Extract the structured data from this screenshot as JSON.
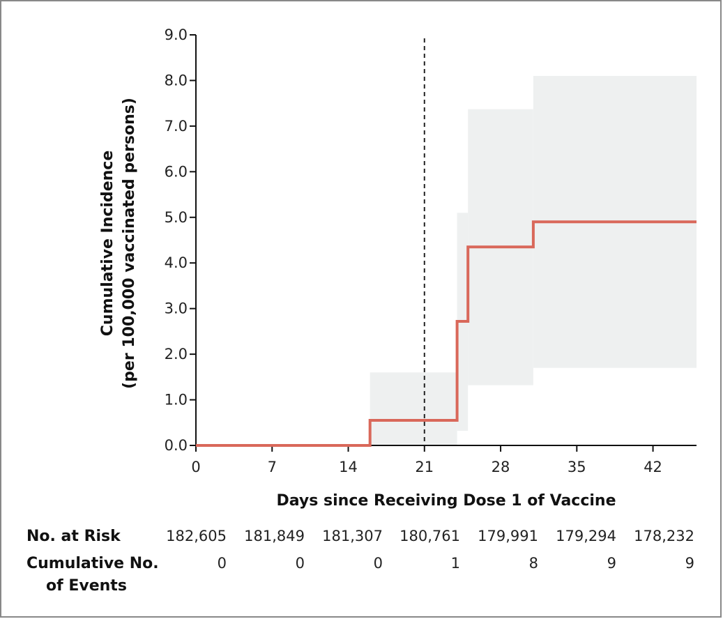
{
  "chart_data": {
    "type": "line",
    "step": true,
    "xlabel": "Days since Receiving Dose 1 of Vaccine",
    "ylabel": [
      "Cumulative Incidence",
      "(per 100,000 vaccinated persons)"
    ],
    "xlim": [
      0,
      46
    ],
    "ylim": [
      0,
      9
    ],
    "xticks": [
      0,
      7,
      14,
      21,
      28,
      35,
      42
    ],
    "yticks": [
      "0.0",
      "1.0",
      "2.0",
      "3.0",
      "4.0",
      "5.0",
      "6.0",
      "7.0",
      "8.0",
      "9.0"
    ],
    "reference_line_x": 21,
    "series": [
      {
        "color": "#d9685a",
        "points": [
          [
            0,
            0
          ],
          [
            16,
            0
          ],
          [
            16,
            0.55
          ],
          [
            24,
            0.55
          ],
          [
            24,
            2.72
          ],
          [
            25,
            2.72
          ],
          [
            25,
            4.35
          ],
          [
            31,
            4.35
          ],
          [
            31,
            4.9
          ],
          [
            46,
            4.9
          ]
        ]
      }
    ],
    "confidence_band": {
      "color": "#eef0f0",
      "segments": [
        {
          "x0": 16,
          "x1": 24,
          "lo": 0,
          "hi": 1.6
        },
        {
          "x0": 24,
          "x1": 25,
          "lo": 0.32,
          "hi": 5.1
        },
        {
          "x0": 25,
          "x1": 31,
          "lo": 1.32,
          "hi": 7.37
        },
        {
          "x0": 31,
          "x1": 46,
          "lo": 1.7,
          "hi": 8.1
        }
      ]
    }
  },
  "risk_table": {
    "at_risk_label": "No. at Risk",
    "events_label": [
      "Cumulative No.",
      "of Events"
    ],
    "at_risk": [
      "182,605",
      "181,849",
      "181,307",
      "180,761",
      "179,991",
      "179,294",
      "178,232"
    ],
    "events": [
      "0",
      "0",
      "0",
      "1",
      "8",
      "9",
      "9"
    ]
  }
}
